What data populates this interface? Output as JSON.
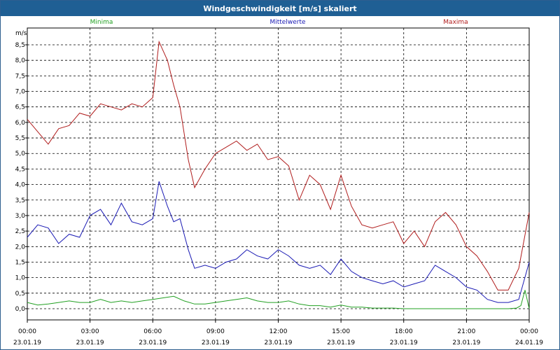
{
  "window": {
    "title": "Windgeschwindigkeit [m/s] skaliert"
  },
  "chart_data": {
    "type": "line",
    "title": "Windgeschwindigkeit [m/s] skaliert",
    "ylabel": "m/s",
    "ylim": [
      -0.2,
      9.1
    ],
    "xlim_hours": [
      0,
      24
    ],
    "y_ticks": [
      "0,0",
      "0,5",
      "1,0",
      "1,5",
      "2,0",
      "2,5",
      "3,0",
      "3,5",
      "4,0",
      "4,5",
      "5,0",
      "5,5",
      "6,0",
      "6,5",
      "7,0",
      "7,5",
      "8,0",
      "8,5"
    ],
    "x_ticks": [
      {
        "time": "00:00",
        "date": "23.01.19"
      },
      {
        "time": "03:00",
        "date": "23.01.19"
      },
      {
        "time": "06:00",
        "date": "23.01.19"
      },
      {
        "time": "09:00",
        "date": "23.01.19"
      },
      {
        "time": "12:00",
        "date": "23.01.19"
      },
      {
        "time": "15:00",
        "date": "23.01.19"
      },
      {
        "time": "18:00",
        "date": "23.01.19"
      },
      {
        "time": "21:00",
        "date": "23.01.19"
      },
      {
        "time": "00:00",
        "date": "24.01.19"
      }
    ],
    "grid": true,
    "legend_position": "top",
    "series": [
      {
        "name": "Minima",
        "color": "#22a022",
        "x": [
          0,
          0.5,
          1,
          1.5,
          2,
          2.5,
          3,
          3.5,
          4,
          4.5,
          5,
          5.5,
          6,
          6.5,
          7,
          7.5,
          8,
          8.5,
          9,
          9.5,
          10,
          10.5,
          11,
          11.5,
          12,
          12.5,
          13,
          13.5,
          14,
          14.5,
          15,
          15.5,
          16,
          16.5,
          17,
          17.5,
          18,
          19,
          20,
          21,
          22,
          23,
          23.4,
          23.6,
          23.8,
          24
        ],
        "y": [
          0.2,
          0.12,
          0.15,
          0.2,
          0.25,
          0.2,
          0.2,
          0.3,
          0.2,
          0.25,
          0.2,
          0.25,
          0.3,
          0.35,
          0.4,
          0.25,
          0.15,
          0.15,
          0.2,
          0.25,
          0.3,
          0.35,
          0.25,
          0.2,
          0.2,
          0.25,
          0.15,
          0.1,
          0.1,
          0.05,
          0.12,
          0.05,
          0.05,
          0.02,
          0.02,
          0.02,
          0.0,
          0.0,
          0.0,
          0.0,
          0.0,
          0.0,
          0.02,
          0.1,
          0.6,
          0.0
        ]
      },
      {
        "name": "Mittelwerte",
        "color": "#1a1ab4",
        "x": [
          0,
          0.5,
          1,
          1.5,
          2,
          2.5,
          3,
          3.5,
          4,
          4.5,
          5,
          5.5,
          6,
          6.3,
          6.7,
          7,
          7.3,
          7.7,
          8,
          8.5,
          9,
          9.5,
          10,
          10.5,
          11,
          11.5,
          12,
          12.5,
          13,
          13.5,
          14,
          14.5,
          15,
          15.5,
          16,
          16.5,
          17,
          17.5,
          18,
          18.5,
          19,
          19.5,
          20,
          20.5,
          21,
          21.5,
          22,
          22.5,
          23,
          23.5,
          24
        ],
        "y": [
          2.3,
          2.7,
          2.6,
          2.1,
          2.4,
          2.3,
          3.0,
          3.2,
          2.7,
          3.4,
          2.8,
          2.7,
          2.9,
          4.1,
          3.3,
          2.8,
          2.9,
          1.9,
          1.3,
          1.4,
          1.3,
          1.5,
          1.6,
          1.9,
          1.7,
          1.6,
          1.9,
          1.7,
          1.4,
          1.3,
          1.4,
          1.1,
          1.6,
          1.2,
          1.0,
          0.9,
          0.8,
          0.9,
          0.7,
          0.8,
          0.9,
          1.4,
          1.2,
          1.0,
          0.7,
          0.6,
          0.3,
          0.2,
          0.2,
          0.3,
          1.5
        ]
      },
      {
        "name": "Maxima",
        "color": "#b01c1c",
        "x": [
          0,
          0.5,
          1,
          1.5,
          2,
          2.5,
          3,
          3.5,
          4,
          4.5,
          5,
          5.5,
          6,
          6.3,
          6.7,
          7,
          7.3,
          7.7,
          8,
          8.5,
          9,
          9.5,
          10,
          10.5,
          11,
          11.5,
          12,
          12.5,
          13,
          13.5,
          14,
          14.5,
          15,
          15.5,
          16,
          16.5,
          17,
          17.5,
          18,
          18.5,
          19,
          19.5,
          20,
          20.5,
          21,
          21.5,
          22,
          22.5,
          23,
          23.5,
          24
        ],
        "y": [
          6.1,
          5.7,
          5.3,
          5.8,
          5.9,
          6.3,
          6.2,
          6.6,
          6.5,
          6.4,
          6.6,
          6.5,
          6.8,
          8.6,
          8.0,
          7.2,
          6.5,
          4.8,
          3.9,
          4.5,
          5.0,
          5.2,
          5.4,
          5.1,
          5.3,
          4.8,
          4.9,
          4.6,
          3.5,
          4.3,
          4.0,
          3.2,
          4.3,
          3.3,
          2.7,
          2.6,
          2.7,
          2.8,
          2.1,
          2.5,
          2.0,
          2.8,
          3.1,
          2.7,
          2.0,
          1.7,
          1.2,
          0.6,
          0.6,
          1.3,
          3.1
        ]
      }
    ]
  }
}
